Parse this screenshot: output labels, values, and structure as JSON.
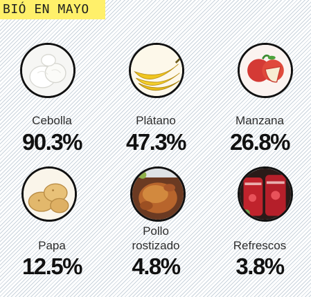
{
  "banner": {
    "text": "BIÓ EN MAYO"
  },
  "items": [
    {
      "label": "Cebolla",
      "value": "90.3%",
      "icon": "onion-icon"
    },
    {
      "label": "Plátano",
      "value": "47.3%",
      "icon": "banana-icon"
    },
    {
      "label": "Manzana",
      "value": "26.8%",
      "icon": "apple-icon"
    },
    {
      "label": "Papa",
      "value": "12.5%",
      "icon": "potato-icon"
    },
    {
      "label_line1": "Pollo",
      "label_line2": "rostizado",
      "value": "4.8%",
      "icon": "roast-chicken-icon"
    },
    {
      "label": "Refrescos",
      "value": "3.8%",
      "icon": "soft-drinks-icon"
    }
  ],
  "colors": {
    "banner_bg": "#fff06a",
    "text": "#111111",
    "background_stripe": "#c9d3dc"
  }
}
